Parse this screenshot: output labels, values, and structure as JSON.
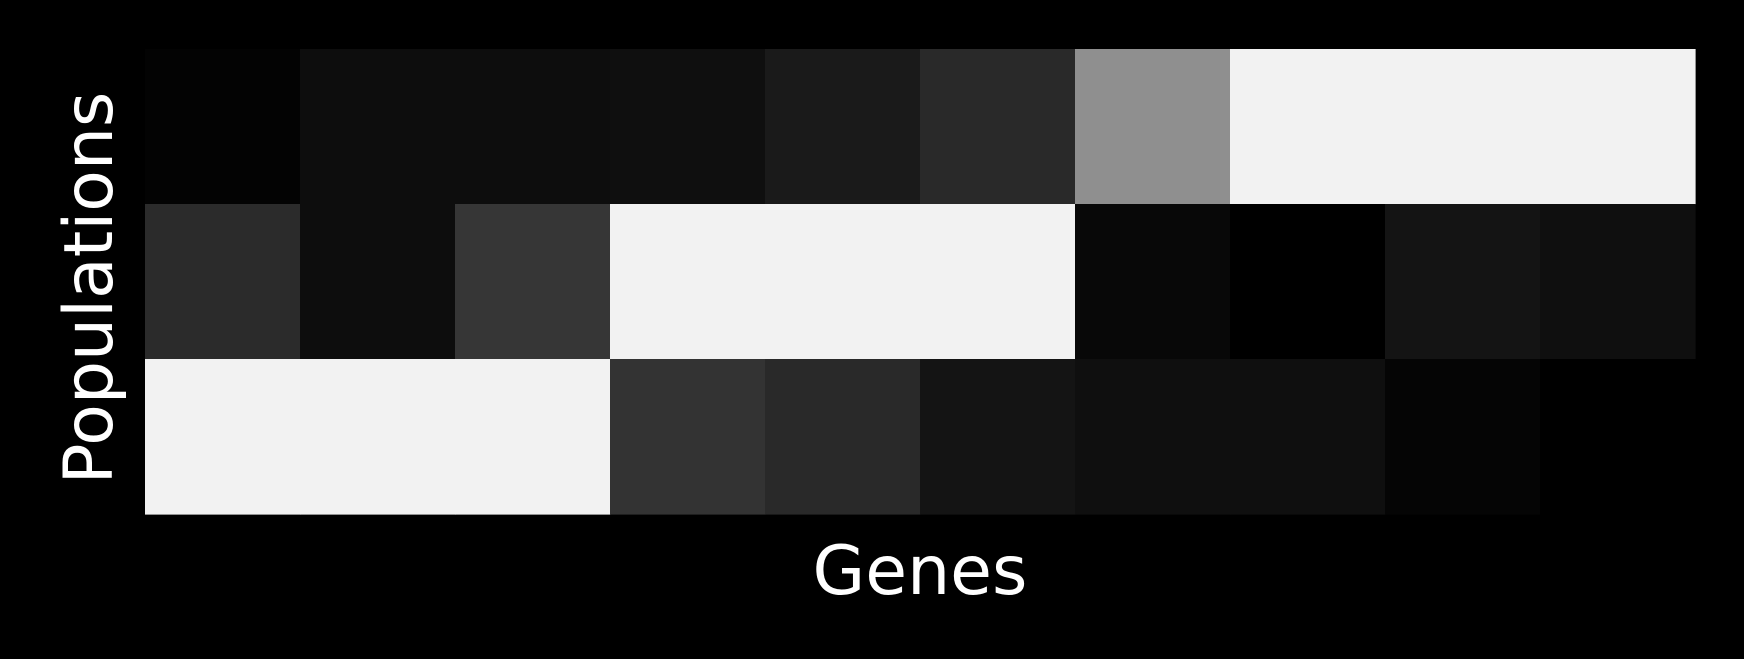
{
  "chart_data": {
    "type": "heatmap",
    "title": "",
    "xlabel": "Genes",
    "ylabel": "Populations",
    "colormap": "gray",
    "background": "#000000",
    "text_color": "#ffffff",
    "vmin": 0,
    "vmax": 1,
    "rows": 3,
    "cols": 10,
    "values": [
      [
        0.01,
        0.05,
        0.05,
        0.06,
        0.1,
        0.16,
        0.56,
        0.95,
        0.95,
        0.95
      ],
      [
        0.17,
        0.05,
        0.21,
        0.95,
        0.95,
        0.95,
        0.03,
        0.0,
        0.08,
        0.06
      ],
      [
        0.95,
        0.95,
        0.95,
        0.2,
        0.16,
        0.08,
        0.06,
        0.06,
        0.02,
        0.0
      ]
    ],
    "grid": false,
    "legend": "none"
  }
}
